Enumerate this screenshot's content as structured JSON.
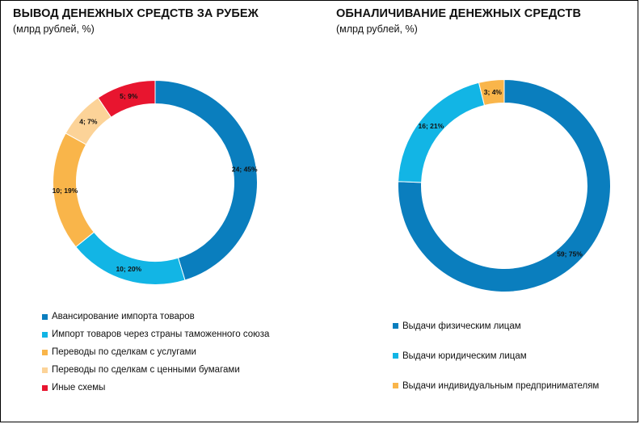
{
  "colors": {
    "dark_blue": "#0a7ebe",
    "light_blue": "#12b5e5",
    "orange": "#f9b54a",
    "peach": "#fcd398",
    "red": "#e8152f"
  },
  "left": {
    "title": "ВЫВОД ДЕНЕЖНЫХ СРЕДСТВ ЗА РУБЕЖ",
    "subtitle": "(млрд рублей, %)"
  },
  "right": {
    "title": "ОБНАЛИЧИВАНИЕ ДЕНЕЖНЫХ СРЕДСТВ",
    "subtitle": "(млрд рублей, %)"
  },
  "chart_data": [
    {
      "type": "pie",
      "donut": true,
      "title": "ВЫВОД ДЕНЕЖНЫХ СРЕДСТВ ЗА РУБЕЖ",
      "subtitle": "(млрд рублей, %)",
      "start": "12 o'clock, clockwise",
      "legend_position": "bottom-left",
      "slices": [
        {
          "name": "Авансирование импорта товаров",
          "value": 24,
          "percent": 45,
          "label": "24; 45%",
          "color": "#0a7ebe"
        },
        {
          "name": "Импорт товаров через страны таможенного союза",
          "value": 10,
          "percent": 20,
          "label": "10; 20%",
          "color": "#12b5e5"
        },
        {
          "name": "Переводы по сделкам с услугами",
          "value": 10,
          "percent": 19,
          "label": "10; 19%",
          "color": "#f9b54a"
        },
        {
          "name": "Переводы по сделкам с ценными бумагами",
          "value": 4,
          "percent": 7,
          "label": "4; 7%",
          "color": "#fcd398"
        },
        {
          "name": "Иные схемы",
          "value": 5,
          "percent": 9,
          "label": "5; 9%",
          "color": "#e8152f"
        }
      ]
    },
    {
      "type": "pie",
      "donut": true,
      "title": "ОБНАЛИЧИВАНИЕ ДЕНЕЖНЫХ СРЕДСТВ",
      "subtitle": "(млрд рублей, %)",
      "start": "12 o'clock, clockwise",
      "legend_position": "bottom-right",
      "slices": [
        {
          "name": "Выдачи физическим лицам",
          "value": 59,
          "percent": 75,
          "label": "59; 75%",
          "color": "#0a7ebe"
        },
        {
          "name": "Выдачи юридическим лицам",
          "value": 16,
          "percent": 21,
          "label": "16; 21%",
          "color": "#12b5e5"
        },
        {
          "name": "Выдачи индивидуальным предпринимателям",
          "value": 3,
          "percent": 4,
          "label": "3; 4%",
          "color": "#f9b54a"
        }
      ]
    }
  ]
}
